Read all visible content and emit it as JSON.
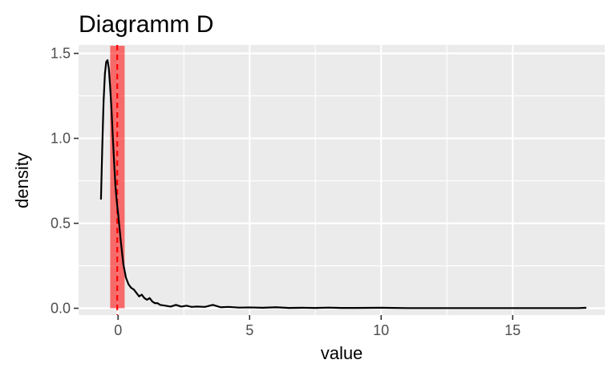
{
  "chart_data": {
    "type": "area",
    "title": "Diagramm D",
    "xlabel": "value",
    "ylabel": "density",
    "xlim": [
      -1.5,
      18.5
    ],
    "ylim": [
      -0.04,
      1.55
    ],
    "x_ticks": [
      0,
      5,
      10,
      15
    ],
    "y_ticks": [
      0.0,
      0.5,
      1.0,
      1.5
    ],
    "x_tick_labels": [
      "0",
      "5",
      "10",
      "15"
    ],
    "y_tick_labels": [
      "0.0",
      "0.5",
      "1.0",
      "1.5"
    ],
    "grid": true,
    "legend": "none",
    "background": "#EBEBEB",
    "gridline_color": "#FFFFFF",
    "series": [
      {
        "x": [
          -0.65,
          -0.6,
          -0.55,
          -0.5,
          -0.45,
          -0.4,
          -0.35,
          -0.3,
          -0.25,
          -0.2,
          -0.15,
          -0.1,
          -0.05,
          0.0,
          0.05,
          0.1,
          0.15,
          0.2,
          0.3,
          0.4,
          0.5,
          0.6,
          0.7,
          0.8,
          0.9,
          1.0,
          1.1,
          1.2,
          1.3,
          1.4,
          1.5,
          1.6,
          1.8,
          2.0,
          2.2,
          2.4,
          2.6,
          2.8,
          3.0,
          3.3,
          3.6,
          3.9,
          4.2,
          4.6,
          5.0,
          5.5,
          6.0,
          6.5,
          7.0,
          7.5,
          8.0,
          8.5,
          9.0,
          10.0,
          11.0,
          12.0,
          13.0,
          14.0,
          15.0,
          16.0,
          17.0,
          17.5,
          17.8
        ],
        "y": [
          0.64,
          0.95,
          1.22,
          1.38,
          1.45,
          1.46,
          1.41,
          1.3,
          1.17,
          1.01,
          0.86,
          0.72,
          0.63,
          0.56,
          0.48,
          0.4,
          0.33,
          0.26,
          0.18,
          0.14,
          0.12,
          0.11,
          0.09,
          0.07,
          0.08,
          0.06,
          0.05,
          0.06,
          0.04,
          0.03,
          0.03,
          0.02,
          0.015,
          0.01,
          0.02,
          0.01,
          0.015,
          0.008,
          0.01,
          0.008,
          0.02,
          0.006,
          0.008,
          0.004,
          0.005,
          0.003,
          0.006,
          0.002,
          0.003,
          0.002,
          0.004,
          0.002,
          0.002,
          0.003,
          0.001,
          0.001,
          0.001,
          0.001,
          0.001,
          0.001,
          0.001,
          0.001,
          0.003
        ],
        "color": "#000000"
      }
    ],
    "annotations": [
      {
        "type": "band",
        "x_min": -0.3,
        "x_max": 0.25,
        "color": "#FF0000",
        "opacity": 0.55
      },
      {
        "type": "vline",
        "x": -0.03,
        "style": "dashed",
        "color": "#FF0000"
      }
    ]
  }
}
